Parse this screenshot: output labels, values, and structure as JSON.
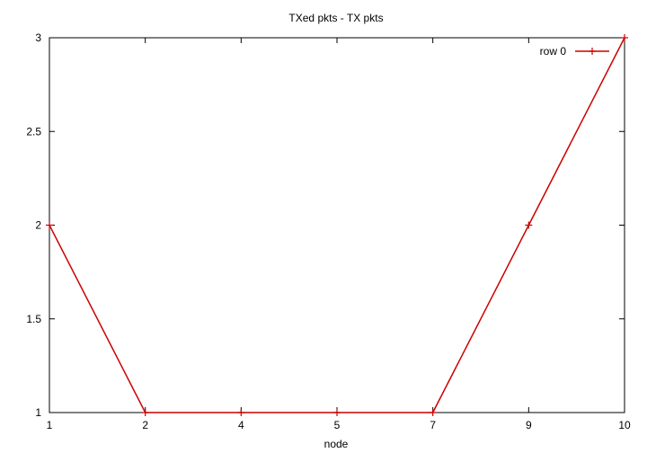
{
  "chart_data": {
    "type": "line",
    "title": "TXed pkts - TX pkts",
    "xlabel": "node",
    "ylabel": "",
    "categories": [
      "1",
      "2",
      "4",
      "5",
      "7",
      "9",
      "10"
    ],
    "yticks": [
      "1",
      "1.5",
      "2",
      "2.5",
      "3"
    ],
    "ytick_values": [
      1,
      1.5,
      2,
      2.5,
      3
    ],
    "ylim": [
      1,
      3
    ],
    "grid": false,
    "legend_position": "top-right",
    "series": [
      {
        "name": "row 0",
        "values": [
          2,
          1,
          1,
          1,
          1,
          2,
          3
        ],
        "color": "#cc0000",
        "marker": "plus"
      }
    ]
  }
}
